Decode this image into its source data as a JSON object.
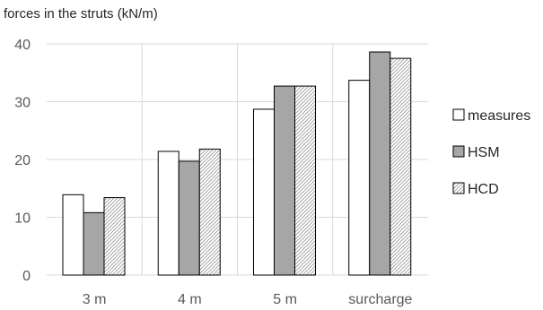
{
  "chart_data": {
    "type": "bar",
    "title": "forces in the struts (kN/m)",
    "xlabel": "",
    "ylabel": "",
    "categories": [
      "3 m",
      "4 m",
      "5 m",
      "surcharge"
    ],
    "ylim": [
      0,
      40
    ],
    "yticks": [
      0,
      10,
      20,
      30,
      40
    ],
    "grid": true,
    "legend_position": "right",
    "series": [
      {
        "name": "measures",
        "values": [
          13.9,
          21.4,
          28.7,
          33.7
        ],
        "fill": "#ffffff",
        "pattern": "solid"
      },
      {
        "name": "HSM",
        "values": [
          10.8,
          19.7,
          32.7,
          38.6
        ],
        "fill": "#a6a6a6",
        "pattern": "solid"
      },
      {
        "name": "HCD",
        "values": [
          13.4,
          21.8,
          32.7,
          37.5
        ],
        "fill": "#ffffff",
        "pattern": "diagonal-hatch"
      }
    ],
    "colors": {
      "grid": "#d9d9d9",
      "border": "#000000",
      "hatch": "#9e9e9e",
      "axis_text": "#595959"
    }
  }
}
